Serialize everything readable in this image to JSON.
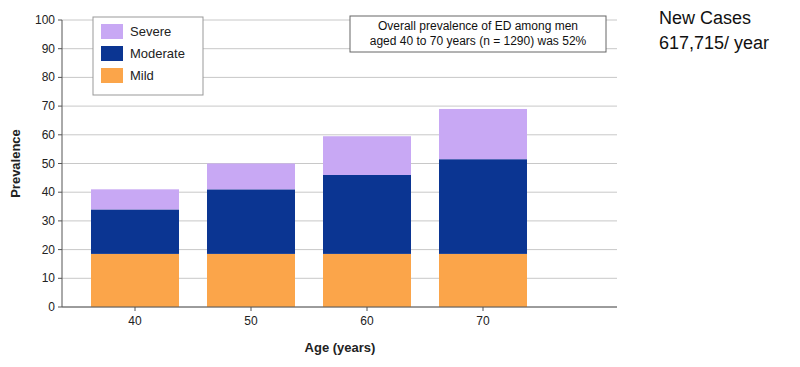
{
  "chart_data": {
    "type": "bar",
    "stacked": true,
    "grid": true,
    "legend": "top-left",
    "x_label": "Age (years)",
    "y_label": "Prevalence",
    "categories": [
      "40",
      "50",
      "60",
      "70"
    ],
    "series": [
      {
        "name": "Mild",
        "color": "#fba54a",
        "values": [
          18.5,
          18.5,
          18.5,
          18.5
        ]
      },
      {
        "name": "Moderate",
        "color": "#0b3592",
        "values": [
          15.5,
          22.5,
          27.5,
          33
        ]
      },
      {
        "name": "Severe",
        "color": "#c8a8f4",
        "values": [
          7,
          9,
          13.5,
          17.5
        ]
      }
    ],
    "ylim": [
      0,
      100
    ],
    "yticks": [
      0,
      10,
      20,
      30,
      40,
      50,
      60,
      70,
      80,
      90,
      100
    ],
    "annotations": [
      "Overall prevalence of ED among men",
      "aged 40 to 70 years (n = 1290) was 52%",
      "New Cases",
      "617,715/ year"
    ]
  }
}
